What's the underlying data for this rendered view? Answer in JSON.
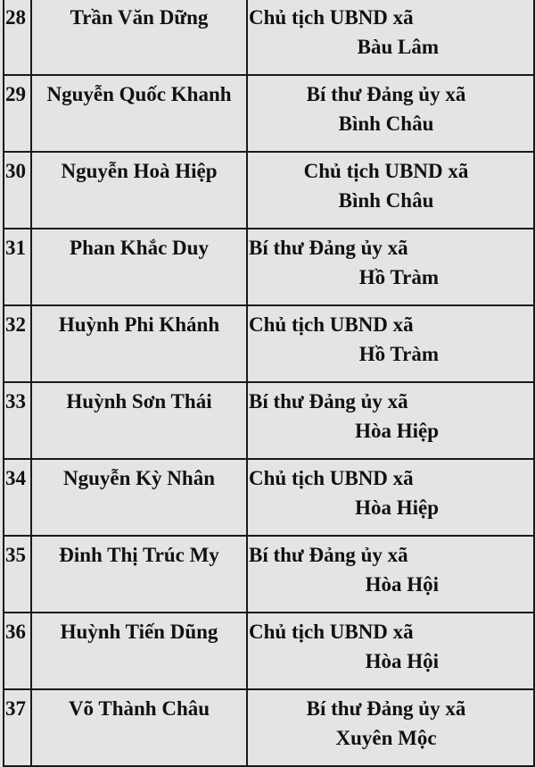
{
  "rows": [
    {
      "no": "28",
      "name": "Trần Văn Dững",
      "position": "Chủ tịch UBND xã",
      "commune": "Bàu Lâm",
      "align": "left"
    },
    {
      "no": "29",
      "name": "Nguyễn Quốc Khanh",
      "position": "Bí thư Đảng ủy xã",
      "commune": "Bình Châu",
      "align": "center"
    },
    {
      "no": "30",
      "name": "Nguyễn Hoà Hiệp",
      "position": "Chủ tịch UBND xã",
      "commune": "Bình Châu",
      "align": "center"
    },
    {
      "no": "31",
      "name": "Phan Khắc Duy",
      "position": "Bí thư Đảng ủy xã",
      "commune": "Hồ Tràm",
      "align": "left"
    },
    {
      "no": "32",
      "name": "Huỳnh Phi Khánh",
      "position": "Chủ tịch UBND xã",
      "commune": "Hồ Tràm",
      "align": "left"
    },
    {
      "no": "33",
      "name": "Huỳnh Sơn Thái",
      "position": "Bí thư Đảng ủy xã",
      "commune": "Hòa Hiệp",
      "align": "left"
    },
    {
      "no": "34",
      "name": "Nguyễn Kỳ Nhân",
      "position": "Chủ tịch UBND xã",
      "commune": "Hòa Hiệp",
      "align": "left"
    },
    {
      "no": "35",
      "name": "Đinh Thị Trúc My",
      "position": "Bí thư Đảng ủy xã",
      "commune": "Hòa Hội",
      "align": "left"
    },
    {
      "no": "36",
      "name": "Huỳnh Tiến Dũng",
      "position": "Chủ tịch UBND xã",
      "commune": "Hòa Hội",
      "align": "left"
    },
    {
      "no": "37",
      "name": "Võ Thành Châu",
      "position": "Bí thư Đảng ủy xã",
      "commune": "Xuyên Mộc",
      "align": "center"
    }
  ]
}
